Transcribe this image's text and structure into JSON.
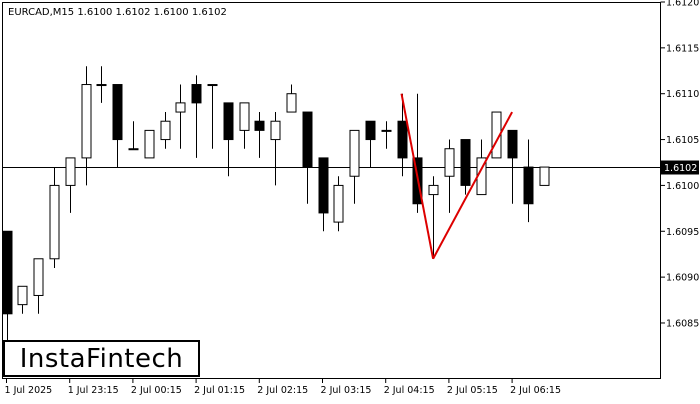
{
  "header": {
    "symbol": "EURCAD,M15",
    "ohlc": "1.6100 1.6102 1.6100 1.6102"
  },
  "brand": {
    "logo_text": "InstaFintech"
  },
  "chart_data": {
    "type": "candlestick",
    "title": "EURCAD,M15",
    "ylim": [
      1.6079,
      1.612
    ],
    "current_price": 1.6102,
    "current_price_label": "1.6102",
    "y_ticks": [
      "1.6120",
      "1.6115",
      "1.6110",
      "1.6105",
      "1.6100",
      "1.6095",
      "1.6090",
      "1.6085"
    ],
    "y_tick_values": [
      1.612,
      1.6115,
      1.611,
      1.6105,
      1.61,
      1.6095,
      1.609,
      1.6085
    ],
    "x_ticks": [
      {
        "label": "1 Jul 2025",
        "index": 0
      },
      {
        "label": "1 Jul 23:15",
        "index": 4
      },
      {
        "label": "2 Jul 00:15",
        "index": 8
      },
      {
        "label": "2 Jul 01:15",
        "index": 12
      },
      {
        "label": "2 Jul 02:15",
        "index": 16
      },
      {
        "label": "2 Jul 03:15",
        "index": 20
      },
      {
        "label": "2 Jul 04:15",
        "index": 24
      },
      {
        "label": "2 Jul 05:15",
        "index": 28
      },
      {
        "label": "2 Jul 06:15",
        "index": 32
      }
    ],
    "candles": [
      {
        "o": 1.6095,
        "h": 1.6095,
        "l": 1.608,
        "c": 1.6086
      },
      {
        "o": 1.6087,
        "h": 1.6089,
        "l": 1.6086,
        "c": 1.6089
      },
      {
        "o": 1.6088,
        "h": 1.6092,
        "l": 1.6086,
        "c": 1.6092
      },
      {
        "o": 1.6092,
        "h": 1.6102,
        "l": 1.6091,
        "c": 1.61
      },
      {
        "o": 1.61,
        "h": 1.6103,
        "l": 1.6097,
        "c": 1.6103
      },
      {
        "o": 1.6103,
        "h": 1.6113,
        "l": 1.61,
        "c": 1.6111
      },
      {
        "o": 1.6111,
        "h": 1.6113,
        "l": 1.6109,
        "c": 1.6111
      },
      {
        "o": 1.6111,
        "h": 1.6111,
        "l": 1.6102,
        "c": 1.6105
      },
      {
        "o": 1.6104,
        "h": 1.6107,
        "l": 1.6104,
        "c": 1.6104
      },
      {
        "o": 1.6103,
        "h": 1.6106,
        "l": 1.6103,
        "c": 1.6106
      },
      {
        "o": 1.6105,
        "h": 1.6108,
        "l": 1.6104,
        "c": 1.6107
      },
      {
        "o": 1.6108,
        "h": 1.6111,
        "l": 1.6104,
        "c": 1.6109
      },
      {
        "o": 1.6111,
        "h": 1.6112,
        "l": 1.6103,
        "c": 1.6109
      },
      {
        "o": 1.6111,
        "h": 1.6111,
        "l": 1.6104,
        "c": 1.6111
      },
      {
        "o": 1.6109,
        "h": 1.6109,
        "l": 1.6101,
        "c": 1.6105
      },
      {
        "o": 1.6106,
        "h": 1.6109,
        "l": 1.6104,
        "c": 1.6109
      },
      {
        "o": 1.6107,
        "h": 1.6108,
        "l": 1.6103,
        "c": 1.6106
      },
      {
        "o": 1.6105,
        "h": 1.6108,
        "l": 1.61,
        "c": 1.6107
      },
      {
        "o": 1.6108,
        "h": 1.6111,
        "l": 1.6108,
        "c": 1.611
      },
      {
        "o": 1.6108,
        "h": 1.6108,
        "l": 1.6098,
        "c": 1.6102
      },
      {
        "o": 1.6103,
        "h": 1.6103,
        "l": 1.6095,
        "c": 1.6097
      },
      {
        "o": 1.6096,
        "h": 1.6101,
        "l": 1.6095,
        "c": 1.61
      },
      {
        "o": 1.6101,
        "h": 1.6106,
        "l": 1.6098,
        "c": 1.6106
      },
      {
        "o": 1.6107,
        "h": 1.6107,
        "l": 1.6102,
        "c": 1.6105
      },
      {
        "o": 1.6106,
        "h": 1.6107,
        "l": 1.6104,
        "c": 1.6106
      },
      {
        "o": 1.6107,
        "h": 1.611,
        "l": 1.6101,
        "c": 1.6103
      },
      {
        "o": 1.6103,
        "h": 1.611,
        "l": 1.6097,
        "c": 1.6098
      },
      {
        "o": 1.6099,
        "h": 1.6101,
        "l": 1.6092,
        "c": 1.61
      },
      {
        "o": 1.6101,
        "h": 1.6105,
        "l": 1.6097,
        "c": 1.6104
      },
      {
        "o": 1.6105,
        "h": 1.6105,
        "l": 1.6099,
        "c": 1.61
      },
      {
        "o": 1.6099,
        "h": 1.6105,
        "l": 1.6099,
        "c": 1.6103
      },
      {
        "o": 1.6103,
        "h": 1.6108,
        "l": 1.6103,
        "c": 1.6108
      },
      {
        "o": 1.6106,
        "h": 1.6106,
        "l": 1.6098,
        "c": 1.6103
      },
      {
        "o": 1.6102,
        "h": 1.6105,
        "l": 1.6096,
        "c": 1.6098
      },
      {
        "o": 1.61,
        "h": 1.6102,
        "l": 1.61,
        "c": 1.6102
      }
    ],
    "pattern_lines": {
      "color": "#dd0000",
      "points": [
        {
          "index": 25,
          "price": 1.611
        },
        {
          "index": 27,
          "price": 1.6092
        },
        {
          "index": 32,
          "price": 1.6108
        }
      ]
    },
    "colors": {
      "background": "#ffffff",
      "candle_stroke": "#000000",
      "bull_fill": "#ffffff",
      "bear_fill": "#000000",
      "price_line": "#000000"
    }
  }
}
